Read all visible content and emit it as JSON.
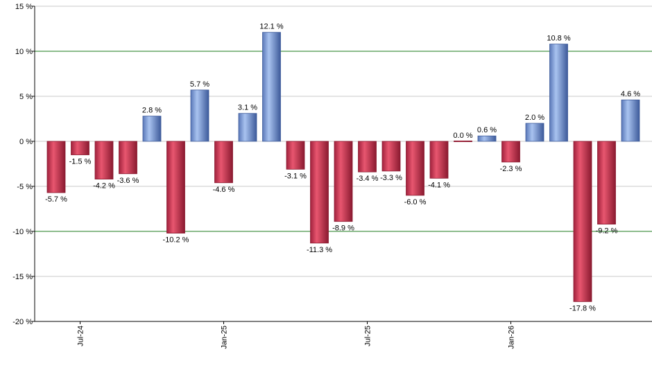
{
  "chart_data": {
    "type": "bar",
    "values": [
      -5.7,
      -1.5,
      -4.2,
      -3.6,
      2.8,
      -10.2,
      5.7,
      -4.6,
      3.1,
      12.1,
      -3.1,
      -11.3,
      -8.9,
      -3.4,
      -3.3,
      -6.0,
      -4.1,
      0.0,
      0.6,
      -2.3,
      2.0,
      10.8,
      -17.8,
      -9.2,
      4.6
    ],
    "data_labels": [
      "-5.7 %",
      "-1.5 %",
      "-4.2 %",
      "-3.6 %",
      "2.8 %",
      "-10.2 %",
      "5.7 %",
      "-4.6 %",
      "3.1 %",
      "12.1 %",
      "-3.1 %",
      "-11.3 %",
      "-8.9 %",
      "-3.4 %",
      "-3.3 %",
      "-6.0 %",
      "-4.1 %",
      "0.0 %",
      "0.6 %",
      "-2.3 %",
      "2.0 %",
      "10.8 %",
      "-17.8 %",
      "-9.2 %",
      "4.6 %"
    ],
    "x_tick_labels": [
      {
        "label": "Jul-24",
        "index": 1
      },
      {
        "label": "Jan-25",
        "index": 7
      },
      {
        "label": "Jul-25",
        "index": 13
      },
      {
        "label": "Jan-26",
        "index": 19
      }
    ],
    "y_ticks": [
      {
        "value": 15,
        "label": "15 %"
      },
      {
        "value": 10,
        "label": "10 %"
      },
      {
        "value": 5,
        "label": "5 %"
      },
      {
        "value": 0,
        "label": "0 %"
      },
      {
        "value": -5,
        "label": "-5 %"
      },
      {
        "value": -10,
        "label": "-10 %"
      },
      {
        "value": -15,
        "label": "-15 %"
      },
      {
        "value": -20,
        "label": "-20 %"
      }
    ],
    "ylim": [
      -20,
      15
    ],
    "reference_lines": [
      10,
      -10
    ],
    "grid": true,
    "title": "",
    "xlabel": "",
    "ylabel": "",
    "colors": {
      "positive": "#7b9ee0",
      "positive_dark": "#3d5a9a",
      "negative": "#d83c5c",
      "negative_dark": "#8a1a30",
      "grid": "#c8c8c8",
      "reference": "#1a7a1a",
      "axis": "#000000"
    }
  }
}
